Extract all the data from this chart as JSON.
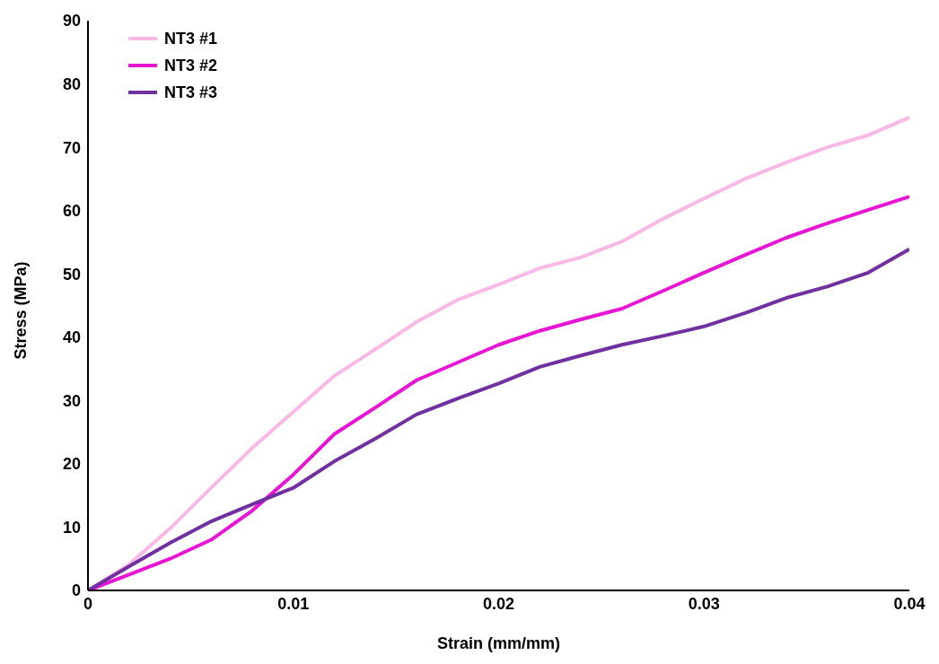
{
  "chart_data": {
    "type": "line",
    "xlabel": "Strain (mm/mm)",
    "ylabel": "Stress (MPa)",
    "xlim": [
      0,
      0.04
    ],
    "xticks": [
      0,
      0.01,
      0.02,
      0.03,
      0.04
    ],
    "ylim": [
      0,
      90
    ],
    "yticks": [
      0,
      10,
      20,
      30,
      40,
      50,
      60,
      70,
      80,
      90
    ],
    "grid": false,
    "legend": "top left",
    "marker": "none",
    "line_style": "solid",
    "x": [
      0,
      0.002,
      0.004,
      0.006,
      0.008,
      0.01,
      0.012,
      0.014,
      0.016,
      0.018,
      0.02,
      0.022,
      0.024,
      0.026,
      0.028,
      0.03,
      0.032,
      0.034,
      0.036,
      0.038,
      0.04
    ],
    "series": [
      {
        "name": "NT3 #1",
        "color": "#f9b8e6",
        "values": [
          0,
          4.1,
          9.8,
          16.2,
          22.5,
          28.2,
          33.9,
          38.1,
          42.4,
          45.9,
          48.3,
          50.9,
          52.6,
          55.1,
          58.7,
          61.9,
          65,
          67.6,
          70,
          71.9,
          74.7
        ]
      },
      {
        "name": "NT3 #2",
        "color": "#e815d4",
        "values": [
          0,
          2.5,
          5,
          8,
          12.6,
          18.3,
          24.7,
          28.9,
          33.2,
          36,
          38.8,
          41,
          42.8,
          44.5,
          47.3,
          50.2,
          53,
          55.7,
          58,
          60.1,
          62.2
        ]
      },
      {
        "name": "NT3 #3",
        "color": "#7030a0",
        "values": [
          0,
          3.8,
          7.5,
          10.9,
          13.6,
          16.2,
          20.4,
          24,
          27.8,
          30.3,
          32.7,
          35.3,
          37.1,
          38.8,
          40.2,
          41.7,
          43.8,
          46.2,
          48,
          50.2,
          53.9
        ]
      }
    ]
  }
}
